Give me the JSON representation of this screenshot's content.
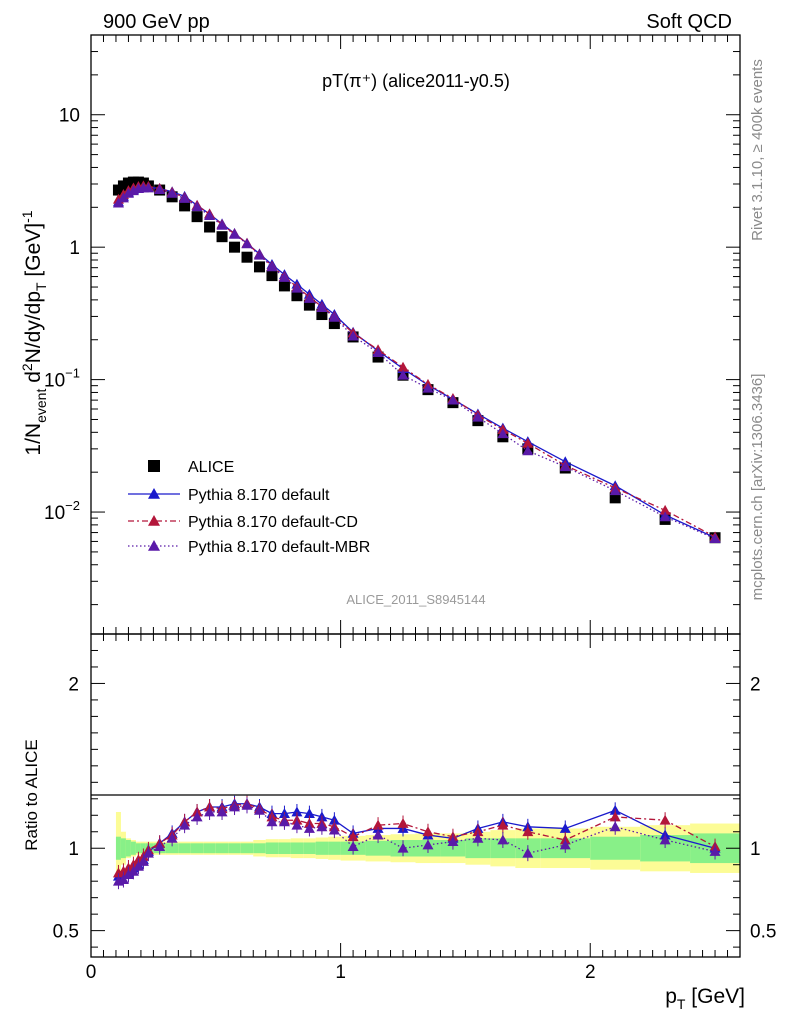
{
  "header": {
    "left": "900 GeV pp",
    "right": "Soft QCD"
  },
  "side_labels": {
    "rivet": "Rivet 3.1.10, ≥ 400k events",
    "mcplots": "mcplots.cern.ch [arXiv:1306.3436]"
  },
  "colors": {
    "alice": "#000000",
    "default": "#1a1acc",
    "cd": "#b3163a",
    "mbr": "#5a1aa8",
    "band_inner": "#88f088",
    "band_outer": "#fcfc96"
  },
  "chart_data": [
    {
      "type": "scatter",
      "panel": "main",
      "title": "pT(π⁺) (alice2011-y0.5)",
      "watermark": "ALICE_2011_S8945144",
      "ylabel": "1/N_event d²N/dy/dp_T [GeV]⁻¹",
      "yscale": "log",
      "ylim": [
        0.0012,
        40
      ],
      "xlim": [
        0,
        2.6
      ],
      "y_ticks": [
        {
          "v": 0.01,
          "base": "10",
          "exp": "−2"
        },
        {
          "v": 0.1,
          "base": "10",
          "exp": "−1"
        },
        {
          "v": 1,
          "base": "1",
          "exp": ""
        },
        {
          "v": 10,
          "base": "10",
          "exp": ""
        }
      ],
      "legend": {
        "position": "lower-left",
        "entries": [
          "ALICE",
          "Pythia 8.170 default",
          "Pythia 8.170 default-CD",
          "Pythia 8.170 default-MBR"
        ]
      },
      "x": [
        0.11,
        0.13,
        0.15,
        0.17,
        0.19,
        0.21,
        0.23,
        0.275,
        0.325,
        0.375,
        0.425,
        0.475,
        0.525,
        0.575,
        0.625,
        0.675,
        0.725,
        0.775,
        0.825,
        0.875,
        0.925,
        0.975,
        1.05,
        1.15,
        1.25,
        1.35,
        1.45,
        1.55,
        1.65,
        1.75,
        1.9,
        2.1,
        2.3,
        2.5
      ],
      "series": [
        {
          "name": "ALICE",
          "style": "square",
          "values": [
            2.7,
            2.9,
            3.05,
            3.1,
            3.1,
            3.05,
            2.9,
            2.7,
            2.4,
            2.05,
            1.7,
            1.42,
            1.2,
            1.0,
            0.84,
            0.71,
            0.61,
            0.51,
            0.43,
            0.365,
            0.31,
            0.265,
            0.21,
            0.148,
            0.108,
            0.084,
            0.067,
            0.049,
            0.037,
            0.03,
            0.0215,
            0.0128,
            0.0088,
            0.0064
          ]
        },
        {
          "name": "Pythia 8.170 default",
          "style": "solid",
          "values": [
            2.2,
            2.42,
            2.6,
            2.72,
            2.8,
            2.85,
            2.85,
            2.77,
            2.62,
            2.42,
            2.07,
            1.78,
            1.5,
            1.27,
            1.07,
            0.89,
            0.74,
            0.62,
            0.525,
            0.44,
            0.37,
            0.31,
            0.228,
            0.165,
            0.121,
            0.091,
            0.071,
            0.055,
            0.043,
            0.034,
            0.024,
            0.0158,
            0.0095,
            0.0064
          ]
        },
        {
          "name": "Pythia 8.170 default-CD",
          "style": "dashdot",
          "values": [
            2.3,
            2.5,
            2.67,
            2.8,
            2.87,
            2.9,
            2.88,
            2.78,
            2.6,
            2.37,
            2.07,
            1.78,
            1.48,
            1.26,
            1.07,
            0.88,
            0.72,
            0.6,
            0.5,
            0.42,
            0.355,
            0.3,
            0.225,
            0.168,
            0.124,
            0.092,
            0.072,
            0.054,
            0.042,
            0.033,
            0.0225,
            0.0152,
            0.0103,
            0.0065
          ]
        },
        {
          "name": "Pythia 8.170 default-MBR",
          "style": "dotted",
          "values": [
            2.15,
            2.35,
            2.55,
            2.67,
            2.77,
            2.8,
            2.8,
            2.72,
            2.55,
            2.33,
            2.02,
            1.73,
            1.46,
            1.25,
            1.06,
            0.87,
            0.71,
            0.59,
            0.49,
            0.41,
            0.35,
            0.295,
            0.213,
            0.16,
            0.108,
            0.086,
            0.07,
            0.052,
            0.039,
            0.029,
            0.022,
            0.0145,
            0.0092,
            0.0063
          ]
        }
      ]
    },
    {
      "type": "line",
      "panel": "ratio",
      "ylabel": "Ratio to ALICE",
      "xlabel": "p_T [GeV]",
      "xlim": [
        0,
        2.6
      ],
      "ylim": [
        0.34,
        2.3
      ],
      "x_ticks": [
        0,
        1,
        2
      ],
      "y_ticks": [
        0.5,
        1,
        2
      ],
      "bands": [
        {
          "x": [
            0.1,
            0.12,
            0.14,
            0.16,
            0.18,
            0.2,
            0.22,
            0.25,
            0.3,
            0.35,
            0.4,
            0.45,
            0.5,
            0.55,
            0.6,
            0.65,
            0.7,
            0.75,
            0.8,
            0.85,
            0.9,
            0.95,
            1.0,
            1.1,
            1.2,
            1.3,
            1.4,
            1.5,
            1.6,
            1.7,
            1.8,
            2.0,
            2.2,
            2.4,
            2.6
          ],
          "stat_syst_inner": [
            0.07,
            0.06,
            0.05,
            0.04,
            0.03,
            0.03,
            0.03,
            0.03,
            0.03,
            0.03,
            0.03,
            0.03,
            0.03,
            0.03,
            0.03,
            0.03,
            0.035,
            0.035,
            0.035,
            0.035,
            0.04,
            0.04,
            0.04,
            0.045,
            0.05,
            0.05,
            0.05,
            0.06,
            0.06,
            0.06,
            0.06,
            0.07,
            0.08,
            0.09
          ],
          "total": [
            0.22,
            0.1,
            0.06,
            0.05,
            0.04,
            0.04,
            0.04,
            0.04,
            0.04,
            0.04,
            0.04,
            0.04,
            0.04,
            0.04,
            0.04,
            0.05,
            0.055,
            0.055,
            0.06,
            0.06,
            0.065,
            0.07,
            0.075,
            0.08,
            0.085,
            0.09,
            0.09,
            0.1,
            0.11,
            0.12,
            0.12,
            0.13,
            0.14,
            0.15
          ]
        }
      ],
      "series": [
        {
          "name": "Pythia 8.170 default",
          "values": [
            0.83,
            0.84,
            0.85,
            0.88,
            0.9,
            0.93,
            0.98,
            1.03,
            1.09,
            1.16,
            1.22,
            1.25,
            1.25,
            1.27,
            1.27,
            1.25,
            1.21,
            1.21,
            1.22,
            1.21,
            1.19,
            1.17,
            1.09,
            1.12,
            1.12,
            1.08,
            1.06,
            1.12,
            1.16,
            1.13,
            1.12,
            1.23,
            1.08,
            1.0
          ]
        },
        {
          "name": "Pythia 8.170 default-CD",
          "values": [
            0.85,
            0.86,
            0.88,
            0.9,
            0.93,
            0.95,
            0.99,
            1.03,
            1.08,
            1.16,
            1.22,
            1.25,
            1.24,
            1.26,
            1.27,
            1.24,
            1.19,
            1.17,
            1.17,
            1.15,
            1.15,
            1.13,
            1.07,
            1.14,
            1.15,
            1.1,
            1.07,
            1.1,
            1.14,
            1.1,
            1.05,
            1.19,
            1.17,
            1.01
          ]
        },
        {
          "name": "Pythia 8.170 default-MBR",
          "values": [
            0.8,
            0.81,
            0.84,
            0.86,
            0.89,
            0.92,
            0.97,
            1.01,
            1.06,
            1.14,
            1.19,
            1.22,
            1.22,
            1.25,
            1.26,
            1.23,
            1.16,
            1.16,
            1.14,
            1.12,
            1.13,
            1.11,
            1.01,
            1.08,
            1.0,
            1.02,
            1.04,
            1.06,
            1.05,
            0.97,
            1.02,
            1.13,
            1.05,
            0.98
          ]
        }
      ]
    }
  ]
}
